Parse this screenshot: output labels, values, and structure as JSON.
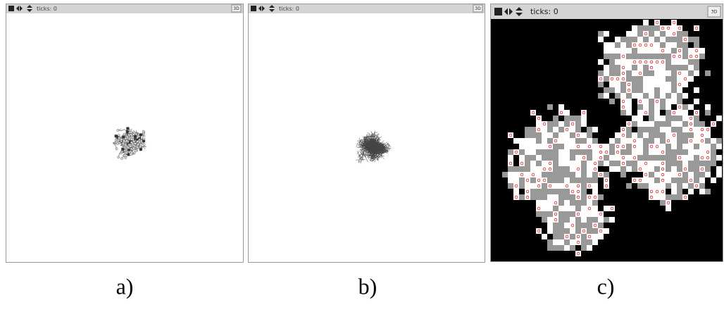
{
  "panels": [
    {
      "toolbar": {
        "ticks": "ticks: 0",
        "button": "3D"
      },
      "caption": "a)"
    },
    {
      "toolbar": {
        "ticks": "ticks: 0",
        "button": "3D"
      },
      "caption": "b)"
    },
    {
      "toolbar": {
        "ticks": "ticks: 0",
        "button": "3D"
      },
      "caption": "c)"
    }
  ]
}
